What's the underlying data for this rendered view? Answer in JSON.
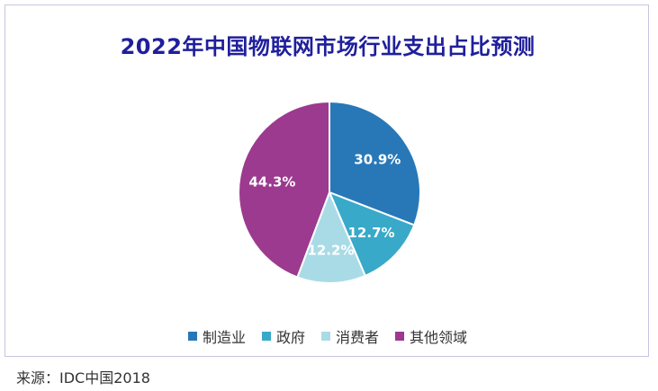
{
  "chart_data": {
    "type": "pie",
    "title": "2022年中国物联网市场行业支出占比预测",
    "categories": [
      "制造业",
      "政府",
      "消费者",
      "其他领域"
    ],
    "values": [
      30.9,
      12.7,
      12.2,
      44.3
    ],
    "labels": [
      "30.9%",
      "12.7%",
      "12.2%",
      "44.3%"
    ],
    "colors": [
      "#2878b8",
      "#38a9c9",
      "#a9dbe6",
      "#9c3a8f"
    ],
    "label_colors": [
      "#ffffff",
      "#ffffff",
      "#ffffff",
      "#ffffff"
    ],
    "legend_position": "bottom"
  },
  "source": "来源：IDC中国2018"
}
